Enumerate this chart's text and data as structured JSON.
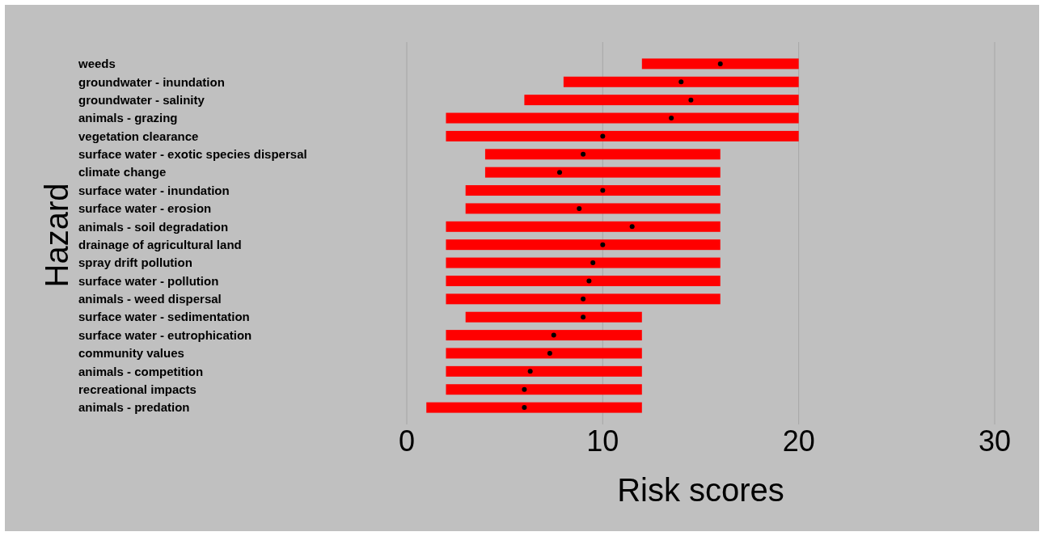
{
  "chart_data": {
    "type": "bar",
    "orientation": "horizontal",
    "xlabel": "Risk scores",
    "ylabel": "Hazard",
    "categories": [
      "weeds",
      "groundwater - inundation",
      "groundwater - salinity",
      "animals - grazing",
      "vegetation clearance",
      "surface water - exotic species dispersal",
      "climate change",
      "surface water - inundation",
      "surface water - erosion",
      "animals - soil degradation",
      "drainage of agricultural land",
      "spray drift pollution",
      "surface water - pollution",
      "animals - weed dispersal",
      "surface water - sedimentation",
      "surface water - eutrophication",
      "community values",
      "animals - competition",
      "recreational impacts",
      "animals - predation"
    ],
    "xlim": [
      0,
      30
    ],
    "xticks": [
      0,
      10,
      20,
      30
    ],
    "grid": "x",
    "series": [
      {
        "type": "bar",
        "color": "#ff0000",
        "base": [
          12,
          8,
          6,
          2,
          2,
          4,
          4,
          3,
          3,
          2,
          2,
          2,
          2,
          2,
          3,
          2,
          2,
          2,
          2,
          1
        ],
        "values": [
          8,
          12,
          14,
          18,
          18,
          12,
          12,
          13,
          13,
          14,
          14,
          14,
          14,
          14,
          9,
          10,
          10,
          10,
          10,
          11
        ]
      },
      {
        "type": "scatter",
        "color": "#000000",
        "marker": "circle",
        "x": [
          "weeds",
          "groundwater - inundation",
          "groundwater - salinity",
          "animals - grazing",
          "vegetation clearance",
          "surface water - exotic species dispersal",
          "climate change",
          "surface water - inundation",
          "surface water - erosion",
          "animals - soil degradation",
          "drainage of agricultural land",
          "spray drift pollution",
          "surface water - pollution",
          "animals - weed dispersal",
          "surface water - sedimentation",
          "surface water - eutrophication",
          "community values",
          "animals - competition",
          "recreational impacts",
          "animals - predation"
        ],
        "values": [
          16,
          14,
          14.5,
          13.5,
          10,
          9,
          7.8,
          10,
          8.8,
          11.5,
          10,
          9.5,
          9.3,
          9,
          9,
          7.5,
          7.3,
          6.3,
          6,
          6
        ]
      }
    ]
  }
}
